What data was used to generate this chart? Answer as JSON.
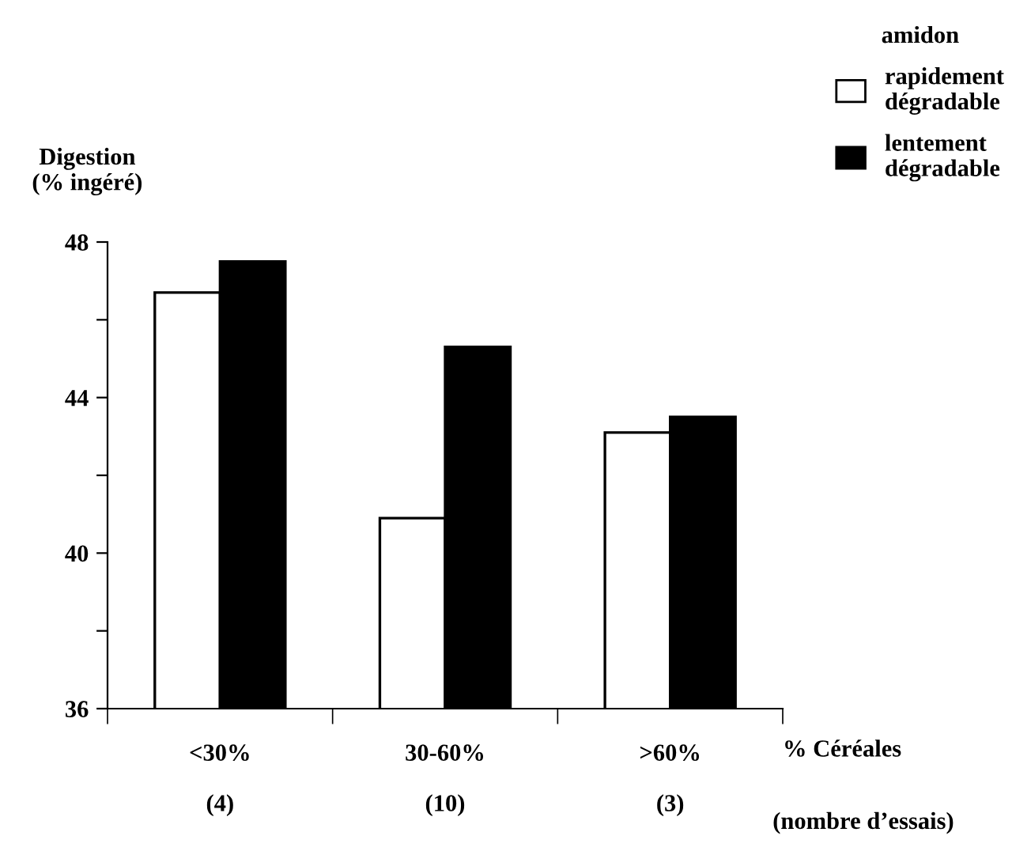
{
  "chart_data": {
    "type": "bar",
    "categories": [
      "<30%\n\n(4)",
      "30-60%\n\n(10)",
      ">60%\n\n(3)"
    ],
    "series": [
      {
        "name": "rapidement\ndégradable",
        "color": "#ffffff",
        "values": [
          46.7,
          40.9,
          43.1
        ]
      },
      {
        "name": "lentement\ndégradable",
        "color": "#000000",
        "values": [
          47.5,
          45.3,
          43.5
        ]
      }
    ],
    "ylabel": "Digestion\n(% ingéré)",
    "xlabel": "% Céréales",
    "annotations": [
      "(nombre d’essais)"
    ],
    "legend_title": "amidon",
    "legend": "top right",
    "ylim": [
      36,
      48
    ],
    "yticks": [
      36,
      {
        "value": 38,
        "label": null
      },
      44,
      {
        "value": 46,
        "label": null
      },
      40,
      {
        "value": 42,
        "label": null
      },
      48
    ],
    "grid": false
  }
}
